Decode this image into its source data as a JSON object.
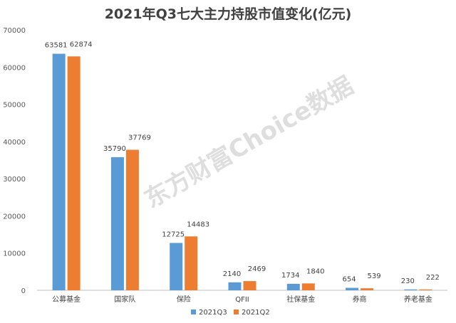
{
  "chart_data": {
    "type": "bar",
    "title": "2021年Q3七大主力持股市值变化(亿元)",
    "categories": [
      "公募基金",
      "国家队",
      "保险",
      "QFII",
      "社保基金",
      "券商",
      "养老基金"
    ],
    "series": [
      {
        "name": "2021Q3",
        "color": "#5b9bd5",
        "values": [
          63581,
          35790,
          12725,
          2140,
          1734,
          654,
          230
        ]
      },
      {
        "name": "2021Q2",
        "color": "#ed7d31",
        "values": [
          62874,
          37769,
          14483,
          2469,
          1840,
          539,
          222
        ]
      }
    ],
    "data_label_text": {
      "2021Q3": [
        "63581",
        "35790",
        "12725",
        "2140",
        "1734",
        "654",
        "230"
      ],
      "2021Q2": [
        "62874",
        "37769",
        "14483",
        "2469",
        "1840",
        "539",
        "222"
      ]
    },
    "ylim": [
      0,
      70000
    ],
    "yticks": [
      0,
      10000,
      20000,
      30000,
      40000,
      50000,
      60000,
      70000
    ],
    "xlabel": "",
    "ylabel": "",
    "grid": false,
    "legend": "bottom-center"
  },
  "watermark": "东方财富Choice数据"
}
